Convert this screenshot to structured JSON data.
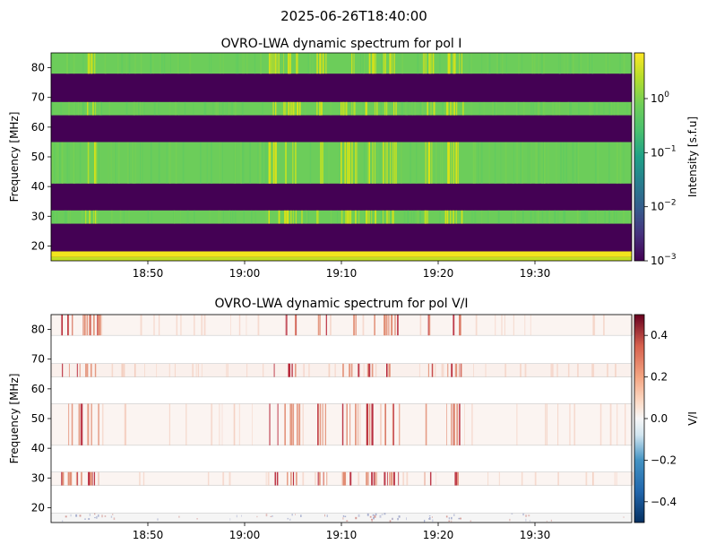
{
  "suptitle": "2025-06-26T18:40:00",
  "colors": {
    "viridis_low": "#440154",
    "viridis_mid": "#22a884",
    "viridis_green": "#6cce59",
    "viridis_high": "#fde725"
  },
  "chart_data": [
    {
      "type": "heatmap",
      "title": "OVRO-LWA dynamic spectrum for pol I",
      "ylabel": "Frequency [MHz]",
      "xlabel": "",
      "x_range_minutes": [
        "18:40:00",
        "19:40:00"
      ],
      "ylim": [
        15,
        85
      ],
      "x_ticks": [
        "18:50",
        "19:00",
        "19:10",
        "19:20",
        "19:30"
      ],
      "y_ticks": [
        20,
        30,
        40,
        50,
        60,
        70,
        80
      ],
      "colorscale": "viridis",
      "colorbar_scale": "log",
      "colorbar_label": "Intensity [s.f.u]",
      "colorbar_range": [
        0.001,
        7
      ],
      "colorbar_ticks": [
        "10",
        "10",
        "10",
        "10"
      ],
      "colorbar_tick_exponents": [
        "0",
        "−1",
        "−2",
        "−3"
      ],
      "colorbar_tick_values": [
        1,
        0.1,
        0.01,
        0.001
      ],
      "bands": [
        {
          "f_low": 15,
          "f_high": 16.3,
          "level": "high"
        },
        {
          "f_low": 16.3,
          "f_high": 18.2,
          "level": "very-high"
        },
        {
          "f_low": 18.2,
          "f_high": 27.5,
          "level": "empty"
        },
        {
          "f_low": 27.5,
          "f_high": 32,
          "level": "signal"
        },
        {
          "f_low": 32,
          "f_high": 41,
          "level": "empty"
        },
        {
          "f_low": 41,
          "f_high": 55,
          "level": "signal"
        },
        {
          "f_low": 55,
          "f_high": 64,
          "level": "empty"
        },
        {
          "f_low": 64,
          "f_high": 68.5,
          "level": "signal"
        },
        {
          "f_low": 68.5,
          "f_high": 78,
          "level": "empty"
        },
        {
          "f_low": 78,
          "f_high": 85,
          "level": "signal"
        }
      ],
      "bright_times_minutes": [
        4,
        23,
        24.5,
        25.3,
        28,
        30.5,
        31.2,
        33,
        34.8,
        35.5,
        39,
        41.3,
        42
      ]
    },
    {
      "type": "heatmap",
      "title": "OVRO-LWA dynamic spectrum for pol V/I",
      "ylabel": "Frequency [MHz]",
      "xlabel": "",
      "x_range_minutes": [
        "18:40:00",
        "19:40:00"
      ],
      "ylim": [
        15,
        85
      ],
      "x_ticks": [
        "18:50",
        "19:00",
        "19:10",
        "19:20",
        "19:30"
      ],
      "y_ticks": [
        20,
        30,
        40,
        50,
        60,
        70,
        80
      ],
      "colorscale": "RdBu_r",
      "colorbar_scale": "linear",
      "colorbar_label": "V/I",
      "colorbar_range": [
        -0.5,
        0.5
      ],
      "colorbar_ticks": [
        "0.4",
        "0.2",
        "0.0",
        "−0.2",
        "−0.4"
      ],
      "colorbar_tick_values": [
        0.4,
        0.2,
        0.0,
        -0.2,
        -0.4
      ],
      "bands": [
        {
          "f_low": 15,
          "f_high": 18.2,
          "level": "signal"
        },
        {
          "f_low": 27.5,
          "f_high": 32,
          "level": "signal"
        },
        {
          "f_low": 41,
          "f_high": 55,
          "level": "signal"
        },
        {
          "f_low": 64,
          "f_high": 68.5,
          "level": "signal"
        },
        {
          "f_low": 78,
          "f_high": 85,
          "level": "signal"
        }
      ],
      "bright_times_minutes": [
        1.5,
        2.2,
        3,
        3.8,
        4.5,
        23,
        24.5,
        25.3,
        28,
        30.5,
        31.2,
        33,
        34.8,
        35.5,
        39,
        41.3,
        42
      ]
    }
  ]
}
